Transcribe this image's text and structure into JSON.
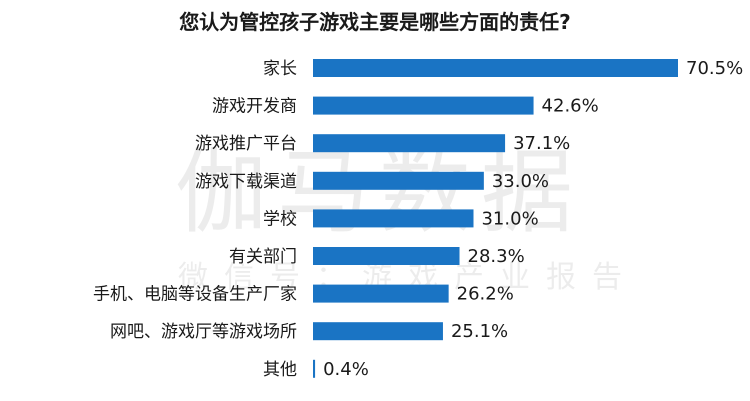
{
  "chart_data": {
    "type": "bar",
    "orientation": "horizontal",
    "title": "您认为管控孩子游戏主要是哪些方面的责任?",
    "categories": [
      "家长",
      "游戏开发商",
      "游戏推广平台",
      "游戏下载渠道",
      "学校",
      "有关部门",
      "手机、电脑等设备生产厂家",
      "网吧、游戏厅等游戏场所",
      "其他"
    ],
    "values": [
      70.5,
      42.6,
      37.1,
      33.0,
      31.0,
      28.3,
      26.2,
      25.1,
      0.4
    ],
    "value_labels": [
      "70.5%",
      "42.6%",
      "37.1%",
      "33.0%",
      "31.0%",
      "28.3%",
      "26.2%",
      "25.1%",
      "0.4%"
    ],
    "unit": "%",
    "xlim": [
      0,
      70.5
    ],
    "grid": false,
    "legend": "none",
    "bar_color": "#1a74c4"
  },
  "watermark": {
    "main": "伽马数据",
    "sub": "微信号：游戏产业报告"
  }
}
